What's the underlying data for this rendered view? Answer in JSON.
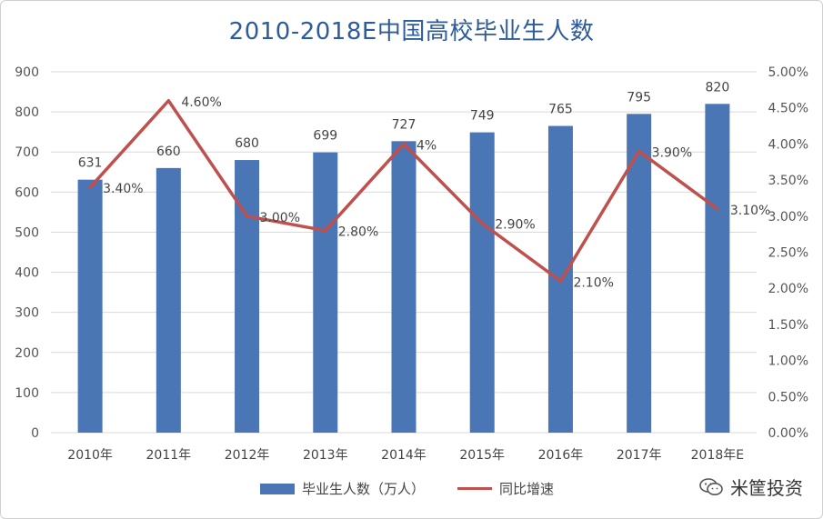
{
  "chart_data": {
    "type": "bar",
    "title": "2010-2018E中国高校毕业生人数",
    "categories": [
      "2010年",
      "2011年",
      "2012年",
      "2013年",
      "2014年",
      "2015年",
      "2016年",
      "2017年",
      "2018年E"
    ],
    "series": [
      {
        "name": "毕业生人数（万人）",
        "type": "bar",
        "axis": "left",
        "values": [
          631,
          660,
          680,
          699,
          727,
          749,
          765,
          795,
          820
        ],
        "labels": [
          "631",
          "660",
          "680",
          "699",
          "727",
          "749",
          "765",
          "795",
          "820"
        ]
      },
      {
        "name": "同比增速",
        "type": "line",
        "axis": "right",
        "values": [
          3.4,
          4.6,
          3.0,
          2.8,
          4.0,
          2.9,
          2.1,
          3.9,
          3.1
        ],
        "labels": [
          "3.40%",
          "4.60%",
          "3.00%",
          "2.80%",
          "4%",
          "2.90%",
          "2.10%",
          "3.90%",
          "3.10%"
        ]
      }
    ],
    "yleft": {
      "min": 0,
      "max": 900,
      "ticks": [
        "0",
        "100",
        "200",
        "300",
        "400",
        "500",
        "600",
        "700",
        "800",
        "900"
      ]
    },
    "yright": {
      "min": 0,
      "max": 5,
      "ticks": [
        "0.00%",
        "0.50%",
        "1.00%",
        "1.50%",
        "2.00%",
        "2.50%",
        "3.00%",
        "3.50%",
        "4.00%",
        "4.50%",
        "5.00%"
      ]
    },
    "grid": true,
    "legend_position": "bottom",
    "colors": {
      "bar": "#4a76b6",
      "line": "#c0504d",
      "grid": "#d9d9d9",
      "title": "#2e5c9a"
    }
  },
  "brand": {
    "name": "米筐投资",
    "icon": "wechat-icon"
  }
}
